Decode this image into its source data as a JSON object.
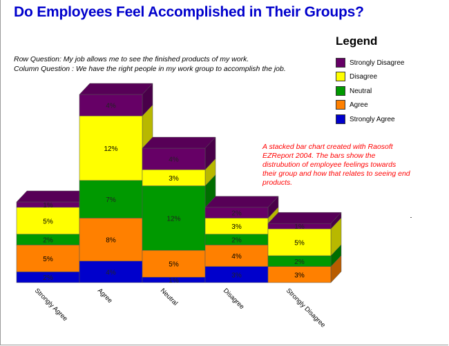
{
  "chart_data": {
    "type": "bar",
    "stacked": true,
    "three_d": true,
    "title": "Do Employees Feel Accomplished in Their Groups?",
    "row_question": "Row Question: My job allows  me to see the finished products of my work.",
    "column_question": "Column Question : We have the right people in my work group to accomplish the job.",
    "legend_title": "Legend",
    "legend_placement": "top-right",
    "annotation": "A stacked bar chart created with  Raosoft EZReport 2004. The bars show the distrubution of employee feelings towards their group and how that relates to seeing end products.",
    "categories": [
      "Strongly Agree",
      "Agree",
      "Neutral",
      "Disagree",
      "Strongly Disagree"
    ],
    "series": [
      {
        "name": "Strongly Agree",
        "color": "#0000cc",
        "values": [
          2,
          4,
          1,
          3,
          0
        ]
      },
      {
        "name": "Agree",
        "color": "#ff8000",
        "values": [
          5,
          8,
          5,
          4,
          3
        ]
      },
      {
        "name": "Neutral",
        "color": "#009900",
        "values": [
          2,
          7,
          12,
          2,
          2
        ]
      },
      {
        "name": "Disagree",
        "color": "#ffff00",
        "values": [
          5,
          12,
          3,
          3,
          5
        ]
      },
      {
        "name": "Strongly Disagree",
        "color": "#660066",
        "values": [
          1,
          4,
          4,
          2,
          1
        ]
      }
    ],
    "legend_order": [
      "Strongly Disagree",
      "Disagree",
      "Neutral",
      "Agree",
      "Strongly Agree"
    ],
    "value_suffix": "%",
    "grid": false
  }
}
